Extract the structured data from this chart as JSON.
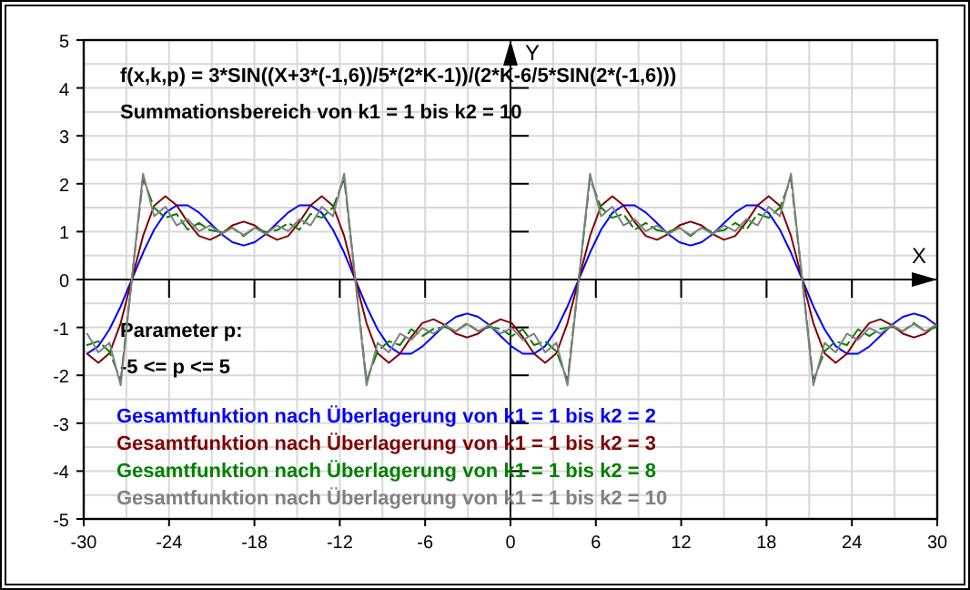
{
  "chart_data": {
    "type": "line",
    "xlabel": "X",
    "ylabel": "Y",
    "xlim": [
      -30,
      30
    ],
    "ylim": [
      -5,
      5
    ],
    "xticks": [
      -30,
      -24,
      -18,
      -12,
      -6,
      0,
      6,
      12,
      18,
      24,
      30
    ],
    "yticks": [
      -5,
      -4,
      -3,
      -2,
      -1,
      0,
      1,
      2,
      3,
      4,
      5
    ],
    "grid": true,
    "legend": "bottom left",
    "marker": "none",
    "annotations": [
      "f(x,k,p) = 3*SIN((X+3*(-1,6))/5*(2*K-1))/(2*K-6/5*SIN(2*(-1,6)))",
      "Summationsbereich von k1 = 1 bis k2 = 10",
      "Parameter p:",
      "-5 <= p <= 5"
    ],
    "x": [
      -29.76,
      -28.97,
      -28.19,
      -27.4,
      -26.62,
      -25.83,
      -25.05,
      -24.26,
      -23.47,
      -22.69,
      -21.9,
      -21.12,
      -20.33,
      -19.55,
      -18.76,
      -17.98,
      -17.19,
      -16.41,
      -15.62,
      -14.84,
      -14.05,
      -13.26,
      -12.48,
      -11.69,
      -10.91,
      -10.12,
      -9.34,
      -8.55,
      -7.77,
      -6.98,
      -6.2,
      -5.41,
      -4.62,
      -3.84,
      -3.05,
      -2.27,
      -1.48,
      -0.7,
      0.09,
      0.87,
      1.66,
      2.44,
      3.23,
      4.01,
      4.8,
      5.59,
      6.37,
      7.16,
      7.94,
      8.73,
      9.51,
      10.3,
      11.08,
      11.87,
      12.65,
      13.44,
      14.22,
      15.01,
      15.8,
      16.58,
      17.37,
      18.15,
      18.94,
      19.72,
      20.51,
      21.29,
      22.08,
      22.86,
      23.65,
      24.43,
      25.22,
      26,
      26.79,
      27.58,
      28.36,
      29.15,
      29.93
    ],
    "series": [
      {
        "name": "Gesamtfunktion nach Überlagerung von k1 = 1 bis k2 = 2",
        "color": "#0000ff",
        "line_style": "solid",
        "values": [
          -1.55,
          -1.39,
          -1.04,
          -0.56,
          0,
          0.56,
          1.04,
          1.39,
          1.55,
          1.55,
          1.4,
          1.18,
          0.95,
          0.78,
          0.71,
          0.78,
          0.95,
          1.18,
          1.4,
          1.55,
          1.55,
          1.39,
          1.04,
          0.56,
          0,
          -0.56,
          -1.04,
          -1.39,
          -1.55,
          -1.55,
          -1.4,
          -1.18,
          -0.95,
          -0.78,
          -0.71,
          -0.78,
          -0.95,
          -1.18,
          -1.4,
          -1.55,
          -1.55,
          -1.39,
          -1.04,
          -0.56,
          0,
          0.56,
          1.04,
          1.39,
          1.55,
          1.55,
          1.4,
          1.18,
          0.95,
          0.78,
          0.71,
          0.78,
          0.95,
          1.18,
          1.4,
          1.55,
          1.55,
          1.39,
          1.04,
          0.56,
          0,
          -0.56,
          -1.04,
          -1.39,
          -1.55,
          -1.55,
          -1.4,
          -1.18,
          -0.95,
          -0.78,
          -0.71,
          -0.78,
          -0.95
        ]
      },
      {
        "name": "Gesamtfunktion nach Überlagerung von k1 = 1 bis k2 = 3",
        "color": "#800000",
        "line_style": "solid",
        "values": [
          -1.55,
          -1.74,
          -1.54,
          -0.91,
          0,
          0.91,
          1.54,
          1.74,
          1.55,
          1.2,
          0.91,
          0.83,
          0.95,
          1.13,
          1.21,
          1.13,
          0.95,
          0.83,
          0.91,
          1.2,
          1.55,
          1.74,
          1.54,
          0.91,
          0,
          -0.91,
          -1.54,
          -1.74,
          -1.55,
          -1.2,
          -0.91,
          -0.83,
          -0.95,
          -1.13,
          -1.21,
          -1.13,
          -0.95,
          -0.83,
          -0.91,
          -1.2,
          -1.55,
          -1.74,
          -1.54,
          -0.91,
          0,
          0.91,
          1.54,
          1.74,
          1.55,
          1.2,
          0.91,
          0.83,
          0.95,
          1.13,
          1.21,
          1.13,
          0.95,
          0.83,
          0.91,
          1.2,
          1.55,
          1.74,
          1.54,
          0.91,
          0,
          -0.91,
          -1.54,
          -1.74,
          -1.55,
          -1.2,
          -0.91,
          -0.83,
          -0.95,
          -1.13,
          -1.21,
          -1.13,
          -0.95
        ]
      },
      {
        "name": "Gesamtfunktion nach Überlagerung von k1 = 1 bis k2 = 8",
        "color": "#008000",
        "line_style": "dashed",
        "values": [
          -1.37,
          -1.29,
          -1.5,
          -2.11,
          0,
          2.11,
          1.5,
          1.29,
          1.37,
          1.04,
          1.18,
          1.03,
          0.99,
          1.08,
          0.91,
          1.08,
          0.99,
          1.03,
          1.18,
          1.04,
          1.37,
          1.29,
          1.5,
          2.11,
          0,
          -2.11,
          -1.5,
          -1.29,
          -1.37,
          -1.04,
          -1.18,
          -1.03,
          -0.99,
          -1.08,
          -0.91,
          -1.08,
          -0.99,
          -1.03,
          -1.18,
          -1.04,
          -1.37,
          -1.29,
          -1.5,
          -2.11,
          0,
          2.11,
          1.5,
          1.29,
          1.37,
          1.04,
          1.18,
          1.03,
          0.99,
          1.08,
          0.91,
          1.08,
          0.99,
          1.03,
          1.18,
          1.04,
          1.37,
          1.29,
          1.5,
          2.11,
          0,
          -2.11,
          -1.5,
          -1.29,
          -1.37,
          -1.04,
          -1.18,
          -1.03,
          -0.99,
          -1.08,
          -0.91,
          -1.08,
          -0.99
        ]
      },
      {
        "name": "Gesamtfunktion nach Überlagerung von k1 = 1 bis k2 = 10",
        "color": "#808080",
        "line_style": "solid",
        "values": [
          -1.13,
          -1.52,
          -1.32,
          -2.21,
          0,
          2.21,
          1.32,
          1.52,
          1.13,
          1.26,
          1.01,
          1.13,
          0.95,
          1.08,
          0.93,
          1.08,
          0.95,
          1.13,
          1.01,
          1.26,
          1.13,
          1.52,
          1.32,
          2.21,
          0,
          -2.21,
          -1.32,
          -1.52,
          -1.13,
          -1.26,
          -1.01,
          -1.13,
          -0.95,
          -1.08,
          -0.93,
          -1.08,
          -0.95,
          -1.13,
          -1.01,
          -1.26,
          -1.13,
          -1.52,
          -1.32,
          -2.21,
          0,
          2.21,
          1.32,
          1.52,
          1.13,
          1.26,
          1.01,
          1.13,
          0.95,
          1.08,
          0.93,
          1.08,
          0.95,
          1.13,
          1.01,
          1.26,
          1.13,
          1.52,
          1.32,
          2.21,
          0,
          -2.21,
          -1.32,
          -1.52,
          -1.13,
          -1.26,
          -1.01,
          -1.13,
          -0.95,
          -1.08,
          -0.93,
          -1.08,
          -0.95
        ]
      }
    ]
  }
}
